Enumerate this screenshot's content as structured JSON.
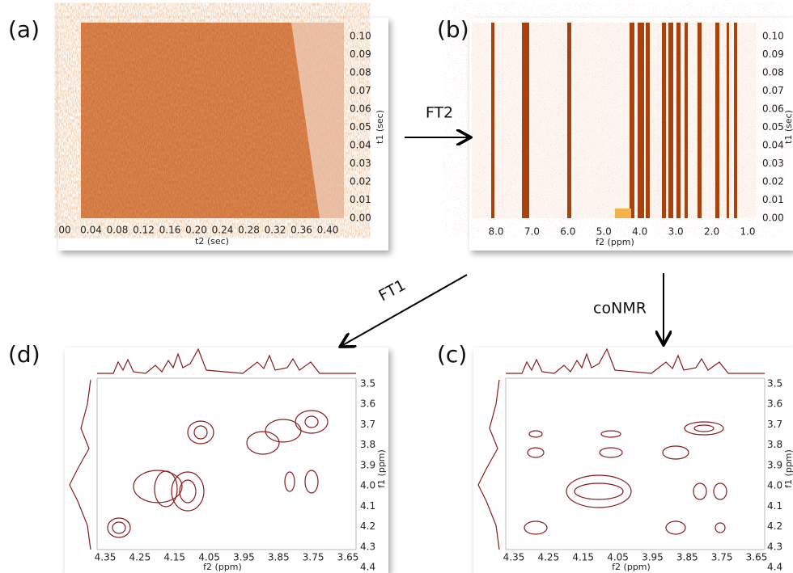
{
  "panels": [
    {
      "label": "(a)",
      "x_axis_title": "t2 (sec)",
      "y_axis_title": "t1 (sec)",
      "x_ticks": [
        "00",
        "0.04",
        "0.08",
        "0.12",
        "0.16",
        "0.20",
        "0.24",
        "0.28",
        "0.32",
        "0.36",
        "0.40"
      ],
      "y_ticks": [
        "0.10",
        "0.09",
        "0.08",
        "0.07",
        "0.06",
        "0.05",
        "0.04",
        "0.03",
        "0.02",
        "0.01",
        "0.00"
      ]
    },
    {
      "label": "(b)",
      "x_axis_title": "f2 (ppm)",
      "y_axis_title": "t1 (sec)",
      "x_ticks": [
        "8.0",
        "7.0",
        "6.0",
        "5.0",
        "4.0",
        "3.0",
        "2.0",
        "1.0"
      ],
      "y_ticks": [
        "0.10",
        "0.09",
        "0.08",
        "0.07",
        "0.06",
        "0.05",
        "0.04",
        "0.03",
        "0.02",
        "0.01",
        "0.00"
      ]
    },
    {
      "label": "(c)",
      "x_axis_title": "f2 (ppm)",
      "y_axis_title": "f1 (ppm)",
      "x_ticks": [
        "4.35",
        "4.25",
        "4.15",
        "4.05",
        "3.95",
        "3.85",
        "3.75",
        "3.65"
      ],
      "y_ticks": [
        "3.5",
        "3.6",
        "3.7",
        "3.8",
        "3.9",
        "4.0",
        "4.1",
        "4.2",
        "4.3",
        "4.4"
      ]
    },
    {
      "label": "(d)",
      "x_axis_title": "f2 (ppm)",
      "y_axis_title": "f1 (ppm)",
      "x_ticks": [
        "4.35",
        "4.25",
        "4.15",
        "4.05",
        "3.95",
        "3.85",
        "3.75",
        "3.65"
      ],
      "y_ticks": [
        "3.5",
        "3.6",
        "3.7",
        "3.8",
        "3.9",
        "4.0",
        "4.1",
        "4.2",
        "4.3",
        "4.4"
      ]
    }
  ],
  "arrows": [
    {
      "label": "FT2"
    },
    {
      "label": "FT1"
    },
    {
      "label": "coNMR"
    }
  ]
}
